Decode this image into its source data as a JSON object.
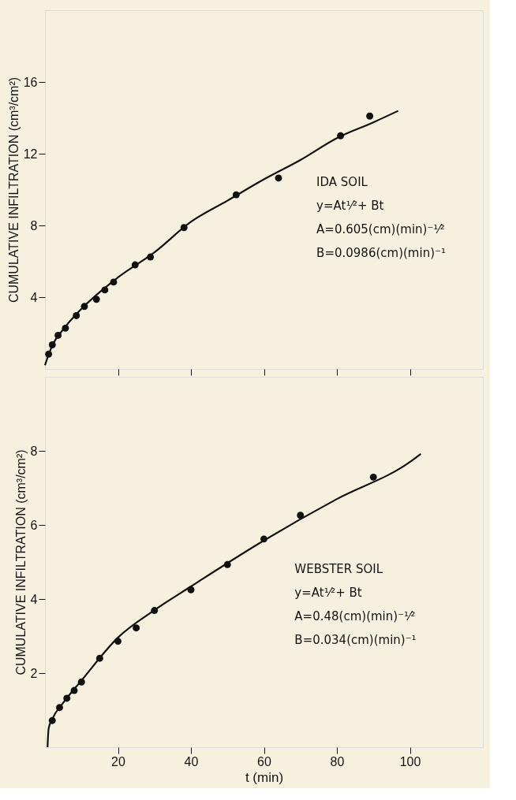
{
  "chart_data": [
    {
      "type": "scatter",
      "ylabel": "CUMULATIVE INFILTRATION (cm³/cm²)",
      "xlim": [
        0,
        120
      ],
      "xticks": [
        20,
        40,
        60,
        80,
        100
      ],
      "ylim": [
        0,
        20
      ],
      "yticks": [
        4,
        8,
        12,
        16
      ],
      "tick_labels": "y",
      "series": [
        {
          "color": "#111111",
          "x": [
            1,
            2,
            3.6,
            5.6,
            8.6,
            10.8,
            14.1,
            16.4,
            18.8,
            24.7,
            28.9,
            38.1,
            52.4,
            64,
            81,
            89
          ],
          "values": [
            0.82,
            1.34,
            1.87,
            2.27,
            2.97,
            3.48,
            3.88,
            4.4,
            4.84,
            5.8,
            6.24,
            7.88,
            9.71,
            10.64,
            13.0,
            14.1
          ]
        },
        {
          "type": "line",
          "color": "#111111",
          "x": [
            0,
            1,
            2,
            5,
            10,
            20,
            30,
            40,
            50,
            60,
            70,
            80,
            90,
            96.8
          ],
          "values": [
            0.2,
            0.8,
            1.3,
            2.2,
            3.35,
            5.1,
            6.5,
            8.2,
            9.38,
            10.57,
            11.65,
            12.87,
            13.75,
            14.39
          ]
        }
      ],
      "annotations": [
        "IDA    SOIL",
        "y=At¹⁄²+ Bt",
        "A=0.605(cm)(min)⁻¹⁄²",
        "B=0.0986(cm)(min)⁻¹"
      ]
    },
    {
      "type": "scatter",
      "ylabel": "CUMULATIVE INFILTRATION (cm³/cm²)",
      "xlabel": "t (min)",
      "xlim": [
        0,
        120
      ],
      "xticks": [
        20,
        40,
        60,
        80,
        100
      ],
      "ylim": [
        0,
        10
      ],
      "yticks": [
        2,
        4,
        6,
        8
      ],
      "series": [
        {
          "color": "#111111",
          "x": [
            2,
            4,
            6,
            8,
            10,
            15,
            20,
            25,
            30,
            40,
            50,
            60,
            70,
            90
          ],
          "values": [
            0.72,
            1.07,
            1.32,
            1.53,
            1.76,
            2.4,
            2.86,
            3.22,
            3.69,
            4.25,
            4.93,
            5.62,
            6.26,
            7.29
          ]
        },
        {
          "type": "line",
          "color": "#111111",
          "x": [
            0.7,
            1,
            2,
            5,
            10,
            20,
            30,
            40,
            60,
            80,
            100,
            103
          ],
          "values": [
            0,
            0.5,
            0.76,
            1.2,
            1.8,
            2.96,
            3.7,
            4.34,
            5.58,
            6.7,
            7.7,
            7.92
          ]
        }
      ],
      "annotations": [
        "WEBSTER SOIL",
        "y=At¹⁄²+ Bt",
        "A=0.48(cm)(min)⁻¹⁄²",
        "B=0.034(cm)(min)⁻¹"
      ]
    }
  ]
}
